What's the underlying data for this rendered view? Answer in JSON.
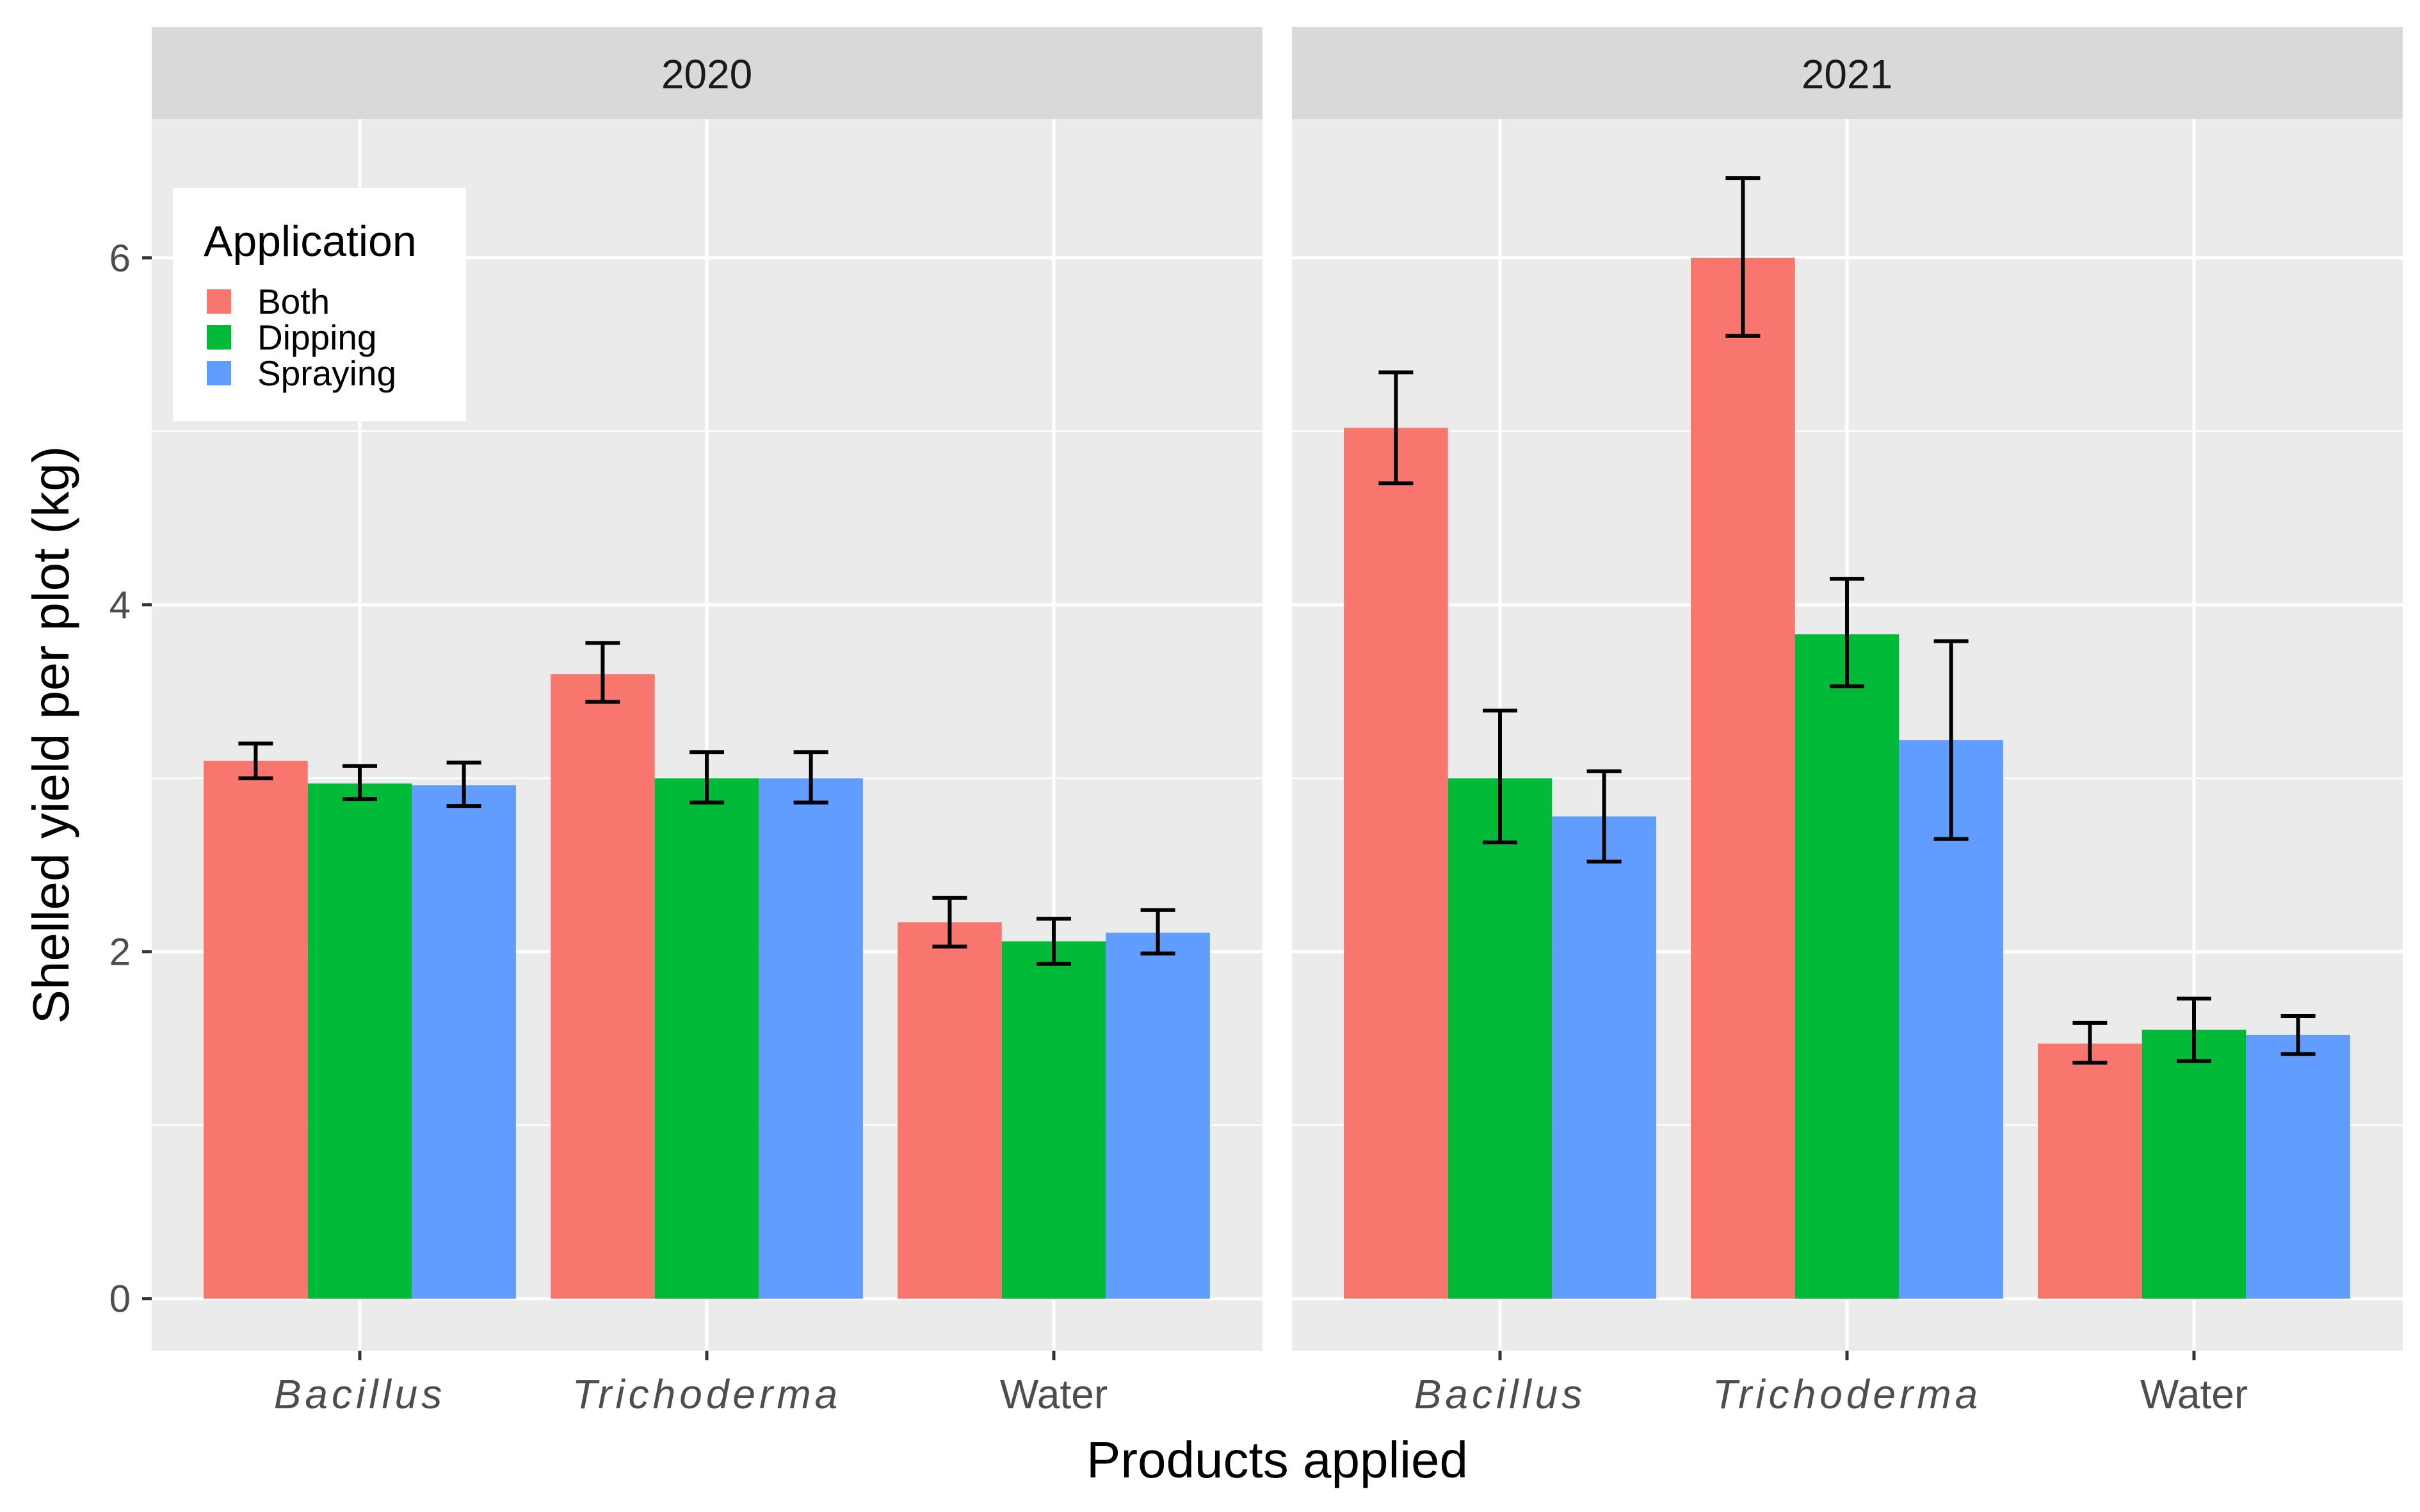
{
  "chart_data": {
    "type": "bar",
    "facets": [
      "2020",
      "2021"
    ],
    "categories": [
      "Bacillus",
      "Trichoderma",
      "Water"
    ],
    "italic_categories": [
      "Bacillus",
      "Trichoderma"
    ],
    "xlabel": "Products applied",
    "ylabel": "Shelled yield per plot (kg)",
    "ylim": [
      -0.3,
      6.8
    ],
    "yticks": [
      0,
      2,
      4,
      6
    ],
    "legend": {
      "title": "Application",
      "position": "top-left inside",
      "entries": [
        "Both",
        "Dipping",
        "Spraying"
      ]
    },
    "colors": {
      "Both": "#F8766D",
      "Dipping": "#00BA38",
      "Spraying": "#619CFF",
      "panel_bg": "#EBEBEB",
      "strip_bg": "#D9D9D9",
      "grid": "#FFFFFF",
      "errorbar": "#000000"
    },
    "panels": [
      {
        "facet": "2020",
        "series": [
          {
            "name": "Both",
            "values": [
              3.1,
              3.6,
              2.17
            ],
            "err_low": [
              3.0,
              3.44,
              2.03
            ],
            "err_high": [
              3.2,
              3.78,
              2.31
            ]
          },
          {
            "name": "Dipping",
            "values": [
              2.97,
              3.0,
              2.06
            ],
            "err_low": [
              2.88,
              2.86,
              1.93
            ],
            "err_high": [
              3.07,
              3.15,
              2.19
            ]
          },
          {
            "name": "Spraying",
            "values": [
              2.96,
              3.0,
              2.11
            ],
            "err_low": [
              2.84,
              2.86,
              1.99
            ],
            "err_high": [
              3.09,
              3.15,
              2.24
            ]
          }
        ]
      },
      {
        "facet": "2021",
        "series": [
          {
            "name": "Both",
            "values": [
              5.02,
              6.0,
              1.47
            ],
            "err_low": [
              4.7,
              5.55,
              1.36
            ],
            "err_high": [
              5.34,
              6.46,
              1.59
            ]
          },
          {
            "name": "Dipping",
            "values": [
              3.0,
              3.83,
              1.55
            ],
            "err_low": [
              2.63,
              3.53,
              1.37
            ],
            "err_high": [
              3.39,
              4.15,
              1.73
            ]
          },
          {
            "name": "Spraying",
            "values": [
              2.78,
              3.22,
              1.52
            ],
            "err_low": [
              2.52,
              2.65,
              1.41
            ],
            "err_high": [
              3.04,
              3.79,
              1.63
            ]
          }
        ]
      }
    ]
  }
}
